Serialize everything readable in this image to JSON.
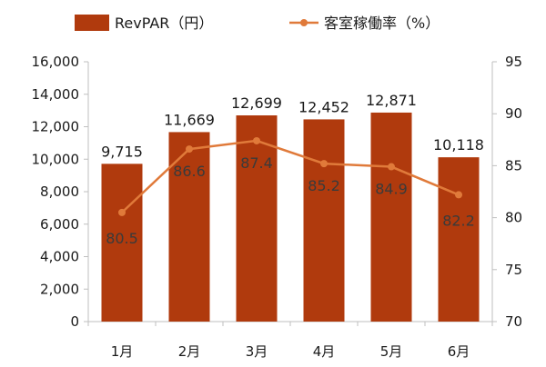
{
  "chart_data": {
    "type": "bar",
    "categories": [
      "1月",
      "2月",
      "3月",
      "4月",
      "5月",
      "6月"
    ],
    "series": [
      {
        "name": "RevPAR（円）",
        "type": "bar",
        "axis": "left",
        "color": "#b03a0d",
        "values": [
          9715,
          11669,
          12699,
          12452,
          12871,
          10118
        ],
        "labels": [
          "9,715",
          "11,669",
          "12,699",
          "12,452",
          "12,871",
          "10,118"
        ]
      },
      {
        "name": "客室稼働率（%）",
        "type": "line",
        "axis": "right",
        "color": "#e07a3a",
        "values": [
          80.5,
          86.6,
          87.4,
          85.2,
          84.9,
          82.2
        ],
        "labels": [
          "80.5",
          "86.6",
          "87.4",
          "85.2",
          "84.9",
          "82.2"
        ]
      }
    ],
    "y_left": {
      "ylim": [
        0,
        16000
      ],
      "ticks": [
        0,
        2000,
        4000,
        6000,
        8000,
        10000,
        12000,
        14000,
        16000
      ],
      "tick_labels": [
        "0",
        "2,000",
        "4,000",
        "6,000",
        "8,000",
        "10,000",
        "12,000",
        "14,000",
        "16,000"
      ]
    },
    "y_right": {
      "ylim": [
        70,
        95
      ],
      "ticks": [
        70,
        75,
        80,
        85,
        90,
        95
      ],
      "tick_labels": [
        "70",
        "75",
        "80",
        "85",
        "90",
        "95"
      ]
    },
    "legend_position": "top",
    "grid": false
  }
}
